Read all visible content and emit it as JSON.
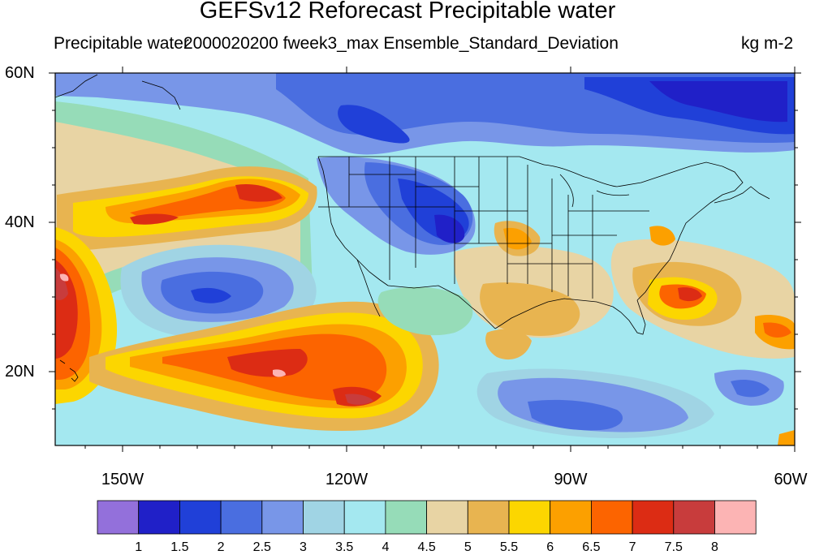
{
  "header": {
    "title": "GEFSv12 Reforecast Precipitable water",
    "left": "Precipitable water",
    "center": "2000020200 fweek3_max Ensemble_Standard_Deviation",
    "right": "kg m-2"
  },
  "axes": {
    "lat_labels": [
      "60N",
      "40N",
      "20N"
    ],
    "lon_labels": [
      "150W",
      "120W",
      "90W",
      "60W"
    ],
    "lat_range": [
      10,
      60
    ],
    "lon_range": [
      -159,
      -60
    ]
  },
  "colorbar": {
    "colors": [
      "#9370db",
      "#2020c8",
      "#2040d8",
      "#4a6ee0",
      "#7896e8",
      "#a0d4e4",
      "#a4e8f0",
      "#96dcb8",
      "#e8d4a4",
      "#e8b450",
      "#fcd600",
      "#fca000",
      "#fc6400",
      "#dc2c14",
      "#c83c3c",
      "#fcb4b4"
    ],
    "labels": [
      "1",
      "1.5",
      "2",
      "2.5",
      "3",
      "3.5",
      "4",
      "4.5",
      "5",
      "5.5",
      "6",
      "6.5",
      "7",
      "7.5",
      "8"
    ]
  }
}
